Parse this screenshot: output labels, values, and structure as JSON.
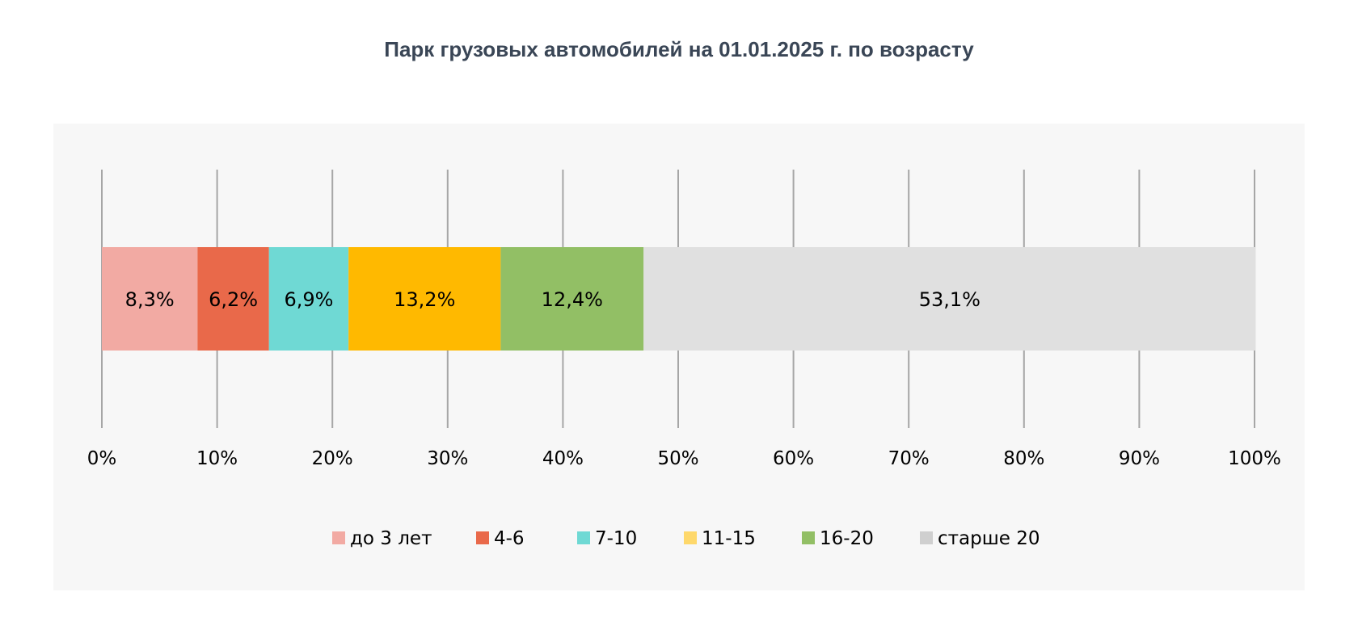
{
  "chart_data": {
    "type": "bar",
    "orientation": "horizontal",
    "stacked": "percent",
    "title": "Парк грузовых автомобилей на 01.01.2025 г.  по возрасту",
    "categories": [
      ""
    ],
    "series": [
      {
        "name": "до 3 лет",
        "values": [
          8.3
        ],
        "label": "8,3%",
        "color": "#f2aaa3"
      },
      {
        "name": "4-6",
        "values": [
          6.2
        ],
        "label": "6,2%",
        "color": "#e9694a"
      },
      {
        "name": "7-10",
        "values": [
          6.9
        ],
        "label": "6,9%",
        "color": "#6fd9d4"
      },
      {
        "name": "11-15",
        "values": [
          13.2
        ],
        "label": "13,2%",
        "color": "#ffb900"
      },
      {
        "name": "16-20",
        "values": [
          12.4
        ],
        "label": "12,4%",
        "color": "#92bf65"
      },
      {
        "name": "старше 20",
        "values": [
          53.1
        ],
        "label": "53,1%",
        "color": "#e0e0e0"
      }
    ],
    "legend_colors": [
      "#f2aaa3",
      "#e9694a",
      "#6fd9d4",
      "#fed86b",
      "#92bf65",
      "#cfcfcf"
    ],
    "xlim": [
      0,
      100
    ],
    "x_ticks": [
      "0%",
      "10%",
      "20%",
      "30%",
      "40%",
      "50%",
      "60%",
      "70%",
      "80%",
      "90%",
      "100%"
    ],
    "grid": true,
    "legend_position": "bottom",
    "background": "#f7f7f7",
    "gridline_color": "#a6a6a6"
  }
}
